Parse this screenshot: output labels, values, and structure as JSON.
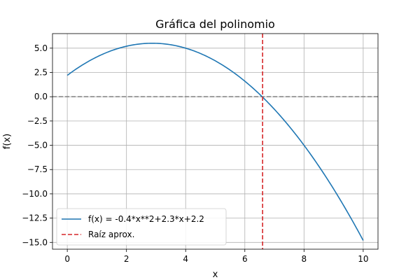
{
  "chart_data": {
    "type": "line",
    "title": "Gráfica del polinomio",
    "xlabel": "x",
    "ylabel": "f(x)",
    "xlim": [
      -0.5,
      10.5
    ],
    "ylim": [
      -15.7,
      6.5
    ],
    "grid": true,
    "legend_position": "lower-left",
    "xticks": [
      0,
      2,
      4,
      6,
      8,
      10
    ],
    "xtick_labels": [
      "0",
      "2",
      "4",
      "6",
      "8",
      "10"
    ],
    "yticks": [
      5.0,
      2.5,
      0.0,
      -2.5,
      -5.0,
      -7.5,
      -10.0,
      -12.5,
      -15.0
    ],
    "ytick_labels": [
      "5.0",
      "2.5",
      "0.0",
      "−2.5",
      "−5.0",
      "−7.5",
      "−10.0",
      "−12.5",
      "−15.0"
    ],
    "series": [
      {
        "name": "f(x) = -0.4*x**2+2.3*x+2.2",
        "style": "solid",
        "color": "#1f77b4",
        "coefficients": [
          -0.4,
          2.3,
          2.2
        ],
        "x_range": [
          0,
          10
        ]
      },
      {
        "name": "Raíz aprox.",
        "style": "dashed",
        "color": "#d62728",
        "vertical_line_x": 6.6
      }
    ],
    "reference_lines": [
      {
        "type": "horizontal",
        "y": 0,
        "style": "dashed",
        "color": "#808080"
      }
    ]
  }
}
